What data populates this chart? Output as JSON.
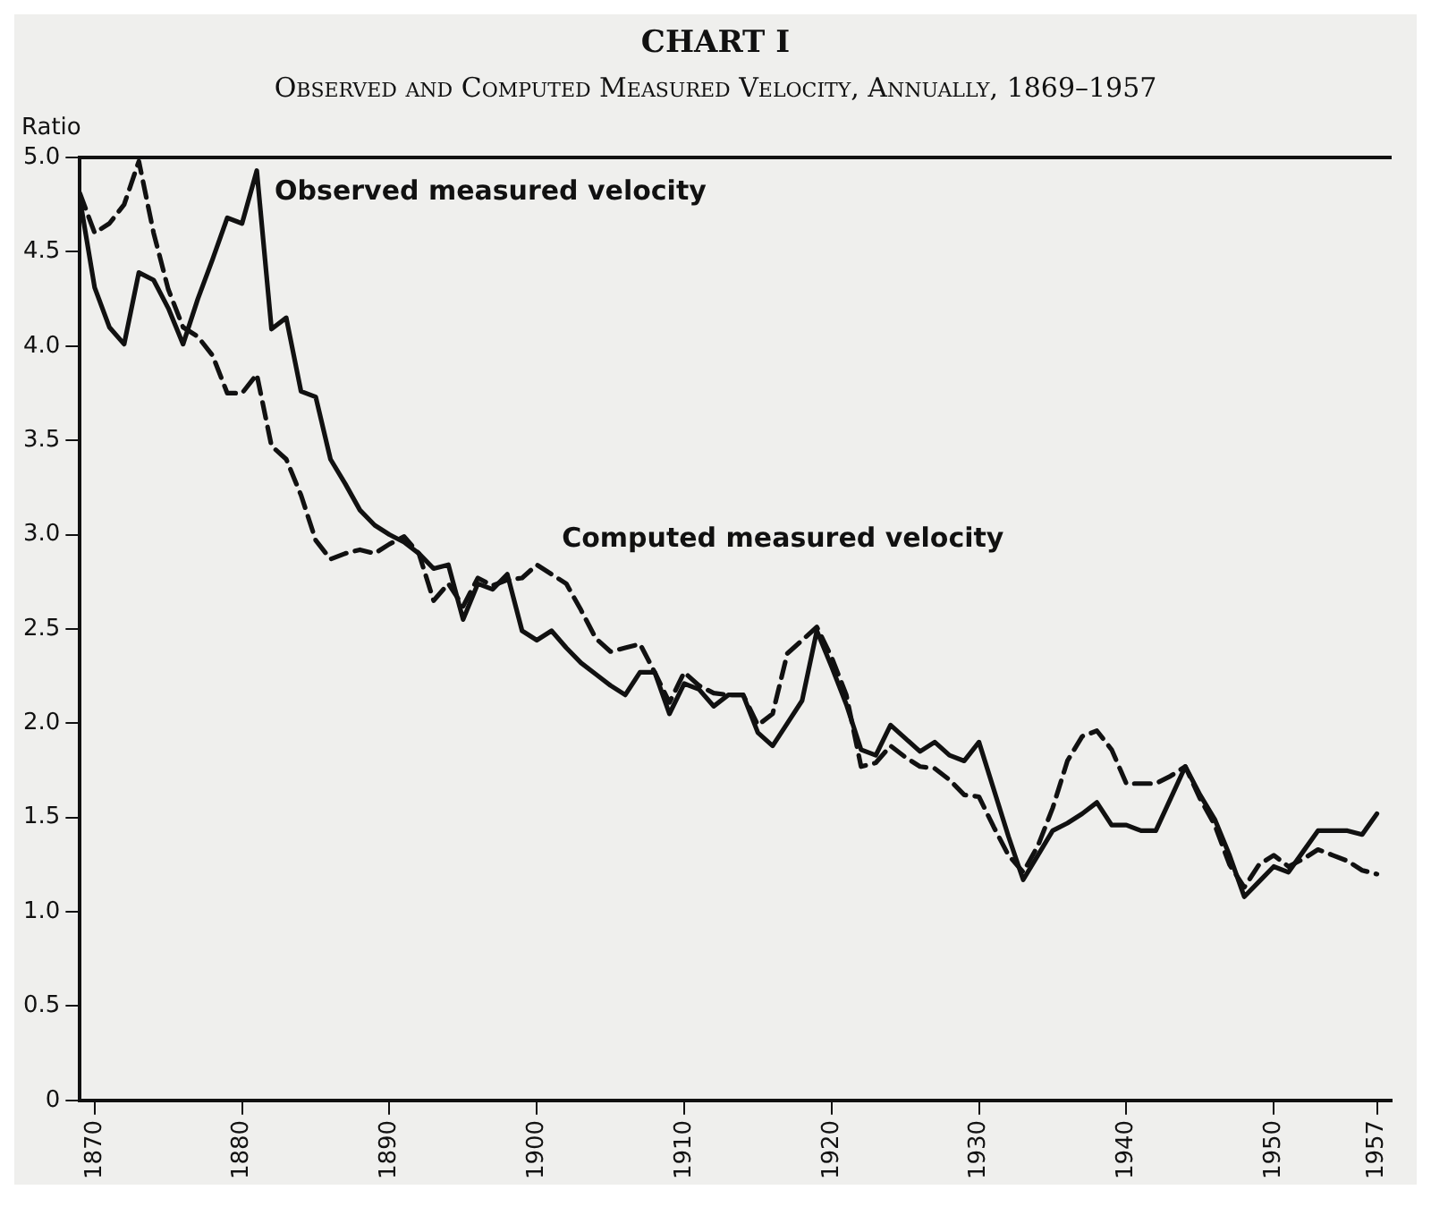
{
  "chart_data": {
    "type": "line",
    "title": "CHART I",
    "subtitle": "Observed and Computed Measured Velocity, Annually, 1869–1957",
    "ylabel": "Ratio",
    "x": [
      1869,
      1870,
      1871,
      1872,
      1873,
      1874,
      1875,
      1876,
      1877,
      1878,
      1879,
      1880,
      1881,
      1882,
      1883,
      1884,
      1885,
      1886,
      1887,
      1888,
      1889,
      1890,
      1891,
      1892,
      1893,
      1894,
      1895,
      1896,
      1897,
      1898,
      1899,
      1900,
      1901,
      1902,
      1903,
      1904,
      1905,
      1906,
      1907,
      1908,
      1909,
      1910,
      1911,
      1912,
      1913,
      1914,
      1915,
      1916,
      1917,
      1918,
      1919,
      1920,
      1921,
      1922,
      1923,
      1924,
      1925,
      1926,
      1927,
      1928,
      1929,
      1930,
      1931,
      1932,
      1933,
      1934,
      1935,
      1936,
      1937,
      1938,
      1939,
      1940,
      1941,
      1942,
      1943,
      1944,
      1945,
      1946,
      1947,
      1948,
      1949,
      1950,
      1951,
      1952,
      1953,
      1954,
      1955,
      1956,
      1957
    ],
    "series": [
      {
        "name": "Observed measured velocity",
        "color": "#111111",
        "line_style": "solid",
        "values": [
          4.78,
          4.31,
          4.1,
          4.01,
          4.39,
          4.35,
          4.2,
          4.01,
          4.25,
          4.46,
          4.68,
          4.65,
          4.93,
          4.09,
          4.15,
          3.76,
          3.73,
          3.4,
          3.27,
          3.13,
          3.05,
          3.0,
          2.96,
          2.9,
          2.82,
          2.84,
          2.55,
          2.74,
          2.71,
          2.79,
          2.49,
          2.44,
          2.49,
          2.4,
          2.32,
          2.26,
          2.2,
          2.15,
          2.27,
          2.27,
          2.05,
          2.21,
          2.18,
          2.09,
          2.15,
          2.15,
          1.95,
          1.88,
          2.0,
          2.12,
          2.49,
          2.3,
          2.1,
          1.86,
          1.83,
          1.99,
          1.92,
          1.85,
          1.9,
          1.83,
          1.8,
          1.9,
          1.65,
          1.4,
          1.17,
          1.3,
          1.43,
          1.47,
          1.52,
          1.58,
          1.46,
          1.46,
          1.43,
          1.43,
          1.6,
          1.77,
          1.62,
          1.49,
          1.3,
          1.08,
          1.16,
          1.24,
          1.21,
          1.32,
          1.43,
          1.43,
          1.43,
          1.41,
          1.52
        ]
      },
      {
        "name": "Computed measured velocity",
        "color": "#111111",
        "line_style": "dashed",
        "values": [
          4.81,
          4.6,
          4.65,
          4.75,
          4.98,
          4.6,
          4.3,
          4.1,
          4.05,
          3.95,
          3.75,
          3.75,
          3.85,
          3.47,
          3.4,
          3.21,
          2.97,
          2.87,
          2.9,
          2.92,
          2.9,
          2.95,
          2.99,
          2.9,
          2.65,
          2.74,
          2.62,
          2.77,
          2.73,
          2.76,
          2.77,
          2.84,
          2.79,
          2.74,
          2.6,
          2.45,
          2.38,
          2.4,
          2.42,
          2.27,
          2.11,
          2.27,
          2.2,
          2.16,
          2.15,
          2.15,
          1.99,
          2.05,
          2.37,
          2.44,
          2.51,
          2.35,
          2.15,
          1.77,
          1.79,
          1.88,
          1.82,
          1.77,
          1.76,
          1.7,
          1.62,
          1.61,
          1.45,
          1.3,
          1.21,
          1.35,
          1.55,
          1.8,
          1.93,
          1.96,
          1.86,
          1.68,
          1.68,
          1.68,
          1.72,
          1.77,
          1.6,
          1.46,
          1.25,
          1.13,
          1.25,
          1.3,
          1.24,
          1.28,
          1.33,
          1.3,
          1.27,
          1.22,
          1.2
        ]
      }
    ],
    "xlim": [
      1869,
      1958
    ],
    "xticks": [
      1870,
      1880,
      1890,
      1900,
      1910,
      1920,
      1930,
      1940,
      1950,
      1957
    ],
    "ylim": [
      0,
      5
    ],
    "yticks": [
      0,
      0.5,
      {
        "value": 1,
        "label": "1.0"
      },
      1.5,
      {
        "value": 2,
        "label": "2.0"
      },
      2.5,
      {
        "value": 3,
        "label": "3.0"
      },
      3.5,
      {
        "value": 4,
        "label": "4.0"
      },
      4.5,
      {
        "value": 5,
        "label": "5.0"
      }
    ],
    "grid": false,
    "legend": false,
    "marker": "none"
  }
}
